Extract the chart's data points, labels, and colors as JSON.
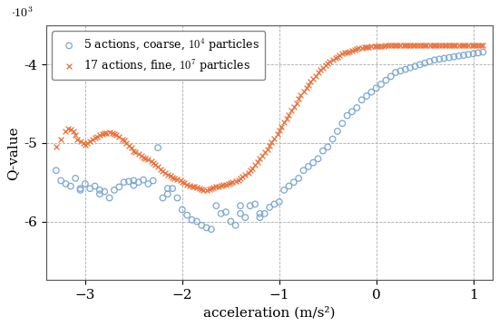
{
  "title": "",
  "xlabel": "acceleration (m/s²)",
  "ylabel": "Q-value",
  "xlim": [
    -3.4,
    1.2
  ],
  "ylim": [
    -6750,
    -3500
  ],
  "yticks": [
    -6000,
    -5000,
    -4000
  ],
  "ytick_labels": [
    "-6",
    "-5",
    "-4"
  ],
  "xticks": [
    -3,
    -2,
    -1,
    0,
    1
  ],
  "blue_color": "#7ba7d4",
  "orange_color": "#e8713a",
  "legend_label_1": "5 actions, coarse, $10^4$ particles",
  "legend_label_2": "17 actions, fine, $10^7$ particles",
  "blue_x": [
    -3.3,
    -3.25,
    -3.2,
    -3.15,
    -3.1,
    -3.05,
    -3.05,
    -3.0,
    -2.95,
    -2.9,
    -2.85,
    -2.85,
    -2.8,
    -2.75,
    -2.7,
    -2.65,
    -2.6,
    -2.55,
    -2.5,
    -2.5,
    -2.45,
    -2.4,
    -2.35,
    -2.3,
    -2.25,
    -2.2,
    -2.15,
    -2.15,
    -2.1,
    -2.05,
    -2.0,
    -1.95,
    -1.9,
    -1.85,
    -1.8,
    -1.75,
    -1.7,
    -1.65,
    -1.6,
    -1.55,
    -1.5,
    -1.45,
    -1.4,
    -1.4,
    -1.35,
    -1.3,
    -1.25,
    -1.2,
    -1.2,
    -1.15,
    -1.1,
    -1.05,
    -1.0,
    -0.95,
    -0.9,
    -0.85,
    -0.8,
    -0.75,
    -0.7,
    -0.65,
    -0.6,
    -0.55,
    -0.5,
    -0.45,
    -0.4,
    -0.35,
    -0.3,
    -0.25,
    -0.2,
    -0.15,
    -0.1,
    -0.05,
    0.0,
    0.05,
    0.1,
    0.15,
    0.2,
    0.25,
    0.3,
    0.35,
    0.4,
    0.45,
    0.5,
    0.55,
    0.6,
    0.65,
    0.7,
    0.75,
    0.8,
    0.85,
    0.9,
    0.95,
    1.0,
    1.05,
    1.1
  ],
  "blue_y": [
    -5350,
    -5480,
    -5520,
    -5550,
    -5450,
    -5580,
    -5600,
    -5520,
    -5580,
    -5550,
    -5600,
    -5650,
    -5620,
    -5700,
    -5600,
    -5560,
    -5500,
    -5490,
    -5480,
    -5540,
    -5500,
    -5470,
    -5520,
    -5480,
    -5060,
    -5700,
    -5580,
    -5650,
    -5580,
    -5700,
    -5850,
    -5920,
    -5980,
    -6000,
    -6050,
    -6080,
    -6100,
    -5800,
    -5900,
    -5880,
    -6000,
    -6050,
    -5800,
    -5900,
    -5950,
    -5800,
    -5780,
    -5900,
    -5950,
    -5900,
    -5820,
    -5780,
    -5750,
    -5600,
    -5550,
    -5500,
    -5450,
    -5350,
    -5300,
    -5250,
    -5200,
    -5100,
    -5050,
    -4950,
    -4850,
    -4750,
    -4650,
    -4600,
    -4550,
    -4450,
    -4400,
    -4350,
    -4300,
    -4250,
    -4200,
    -4150,
    -4100,
    -4080,
    -4060,
    -4040,
    -4020,
    -4000,
    -3980,
    -3960,
    -3940,
    -3930,
    -3920,
    -3910,
    -3900,
    -3890,
    -3880,
    -3870,
    -3860,
    -3850,
    -3840
  ],
  "orange_x": [
    -3.3,
    -3.25,
    -3.2,
    -3.18,
    -3.15,
    -3.12,
    -3.1,
    -3.08,
    -3.05,
    -3.02,
    -3.0,
    -2.98,
    -2.95,
    -2.92,
    -2.9,
    -2.88,
    -2.85,
    -2.82,
    -2.8,
    -2.78,
    -2.75,
    -2.72,
    -2.7,
    -2.68,
    -2.65,
    -2.62,
    -2.6,
    -2.58,
    -2.55,
    -2.52,
    -2.5,
    -2.48,
    -2.45,
    -2.42,
    -2.4,
    -2.38,
    -2.35,
    -2.32,
    -2.3,
    -2.28,
    -2.25,
    -2.22,
    -2.2,
    -2.18,
    -2.15,
    -2.12,
    -2.1,
    -2.08,
    -2.05,
    -2.02,
    -2.0,
    -1.98,
    -1.95,
    -1.92,
    -1.9,
    -1.88,
    -1.85,
    -1.82,
    -1.8,
    -1.78,
    -1.75,
    -1.72,
    -1.7,
    -1.68,
    -1.65,
    -1.62,
    -1.6,
    -1.58,
    -1.55,
    -1.52,
    -1.5,
    -1.48,
    -1.45,
    -1.42,
    -1.4,
    -1.38,
    -1.35,
    -1.32,
    -1.3,
    -1.28,
    -1.25,
    -1.22,
    -1.2,
    -1.18,
    -1.15,
    -1.12,
    -1.1,
    -1.08,
    -1.05,
    -1.02,
    -1.0,
    -0.98,
    -0.95,
    -0.92,
    -0.9,
    -0.88,
    -0.85,
    -0.82,
    -0.8,
    -0.78,
    -0.75,
    -0.72,
    -0.7,
    -0.68,
    -0.65,
    -0.62,
    -0.6,
    -0.58,
    -0.55,
    -0.52,
    -0.5,
    -0.48,
    -0.45,
    -0.42,
    -0.4,
    -0.38,
    -0.35,
    -0.32,
    -0.3,
    -0.28,
    -0.25,
    -0.22,
    -0.2,
    -0.18,
    -0.15,
    -0.12,
    -0.1,
    -0.08,
    -0.05,
    -0.02,
    0.0,
    0.02,
    0.05,
    0.08,
    0.1,
    0.12,
    0.15,
    0.18,
    0.2,
    0.22,
    0.25,
    0.28,
    0.3,
    0.32,
    0.35,
    0.38,
    0.4,
    0.42,
    0.45,
    0.48,
    0.5,
    0.52,
    0.55,
    0.58,
    0.6,
    0.62,
    0.65,
    0.68,
    0.7,
    0.72,
    0.75,
    0.78,
    0.8,
    0.82,
    0.85,
    0.88,
    0.9,
    0.92,
    0.95,
    0.98,
    1.0,
    1.02,
    1.05,
    1.08,
    1.1
  ],
  "orange_y": [
    -5050,
    -4950,
    -4850,
    -4820,
    -4830,
    -4850,
    -4900,
    -4950,
    -4980,
    -5000,
    -5020,
    -5000,
    -4980,
    -4950,
    -4930,
    -4920,
    -4900,
    -4890,
    -4870,
    -4870,
    -4860,
    -4870,
    -4880,
    -4900,
    -4920,
    -4950,
    -4970,
    -5000,
    -5030,
    -5060,
    -5100,
    -5120,
    -5140,
    -5160,
    -5180,
    -5200,
    -5210,
    -5230,
    -5250,
    -5280,
    -5300,
    -5330,
    -5360,
    -5380,
    -5400,
    -5420,
    -5440,
    -5450,
    -5460,
    -5480,
    -5500,
    -5510,
    -5530,
    -5540,
    -5550,
    -5560,
    -5570,
    -5580,
    -5590,
    -5600,
    -5600,
    -5590,
    -5580,
    -5570,
    -5560,
    -5550,
    -5540,
    -5530,
    -5530,
    -5520,
    -5510,
    -5500,
    -5490,
    -5470,
    -5450,
    -5430,
    -5400,
    -5380,
    -5350,
    -5320,
    -5280,
    -5240,
    -5200,
    -5160,
    -5120,
    -5080,
    -5040,
    -4990,
    -4940,
    -4890,
    -4840,
    -4790,
    -4740,
    -4690,
    -4640,
    -4590,
    -4540,
    -4490,
    -4440,
    -4390,
    -4340,
    -4300,
    -4260,
    -4220,
    -4180,
    -4140,
    -4100,
    -4070,
    -4040,
    -4010,
    -3980,
    -3960,
    -3940,
    -3920,
    -3900,
    -3880,
    -3860,
    -3850,
    -3840,
    -3830,
    -3820,
    -3810,
    -3800,
    -3790,
    -3785,
    -3780,
    -3775,
    -3772,
    -3770,
    -3768,
    -3766,
    -3764,
    -3762,
    -3760,
    -3758,
    -3757,
    -3756,
    -3755,
    -3754,
    -3753,
    -3752,
    -3751,
    -3750,
    -3750,
    -3750,
    -3750,
    -3750,
    -3750,
    -3750,
    -3750,
    -3750,
    -3750,
    -3750,
    -3750,
    -3750,
    -3750,
    -3750,
    -3750,
    -3750,
    -3750,
    -3750,
    -3750,
    -3750,
    -3750,
    -3750,
    -3750,
    -3750,
    -3750,
    -3750,
    -3750,
    -3750,
    -3750,
    -3750,
    -3750,
    -3750
  ]
}
